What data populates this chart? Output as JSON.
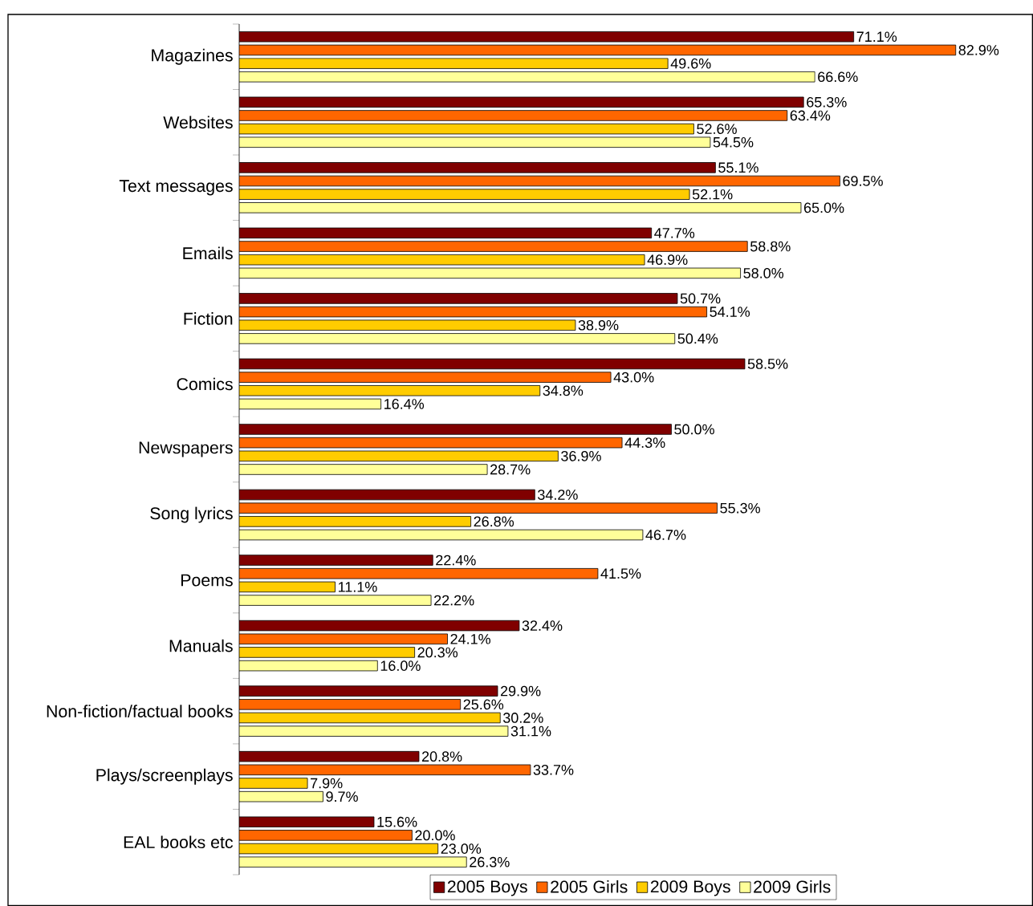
{
  "chart_data": {
    "type": "bar",
    "orientation": "horizontal",
    "legend": "bottom",
    "categories": [
      "Magazines",
      "Websites",
      "Text messages",
      "Emails",
      "Fiction",
      "Comics",
      "Newspapers",
      "Song lyrics",
      "Poems",
      "Manuals",
      "Non-fiction/factual books",
      "Plays/screenplays",
      "EAL books etc"
    ],
    "series": [
      {
        "name": "2005 Boys",
        "color": "#800000",
        "values": [
          71.1,
          65.3,
          55.1,
          47.7,
          50.7,
          58.5,
          50.0,
          34.2,
          22.4,
          32.4,
          29.9,
          20.8,
          15.6
        ],
        "value_labels": [
          "71.1%",
          "65.3%",
          "55.1%",
          "47.7%",
          "50.7%",
          "58.5%",
          "50.0%",
          "34.2%",
          "22.4%",
          "32.4%",
          "29.9%",
          "20.8%",
          "15.6%"
        ]
      },
      {
        "name": "2005 Girls",
        "color": "#ff6600",
        "values": [
          82.9,
          63.4,
          69.5,
          58.8,
          54.1,
          43.0,
          44.3,
          55.3,
          41.5,
          24.1,
          25.6,
          33.7,
          20.0
        ],
        "value_labels": [
          "82.9%",
          "63.4%",
          "69.5%",
          "58.8%",
          "54.1%",
          "43.0%",
          "44.3%",
          "55.3%",
          "41.5%",
          "24.1%",
          "25.6%",
          "33.7%",
          "20.0%"
        ]
      },
      {
        "name": "2009 Boys",
        "color": "#ffcc00",
        "values": [
          49.6,
          52.6,
          52.1,
          46.9,
          38.9,
          34.8,
          36.9,
          26.8,
          11.1,
          20.3,
          30.2,
          7.9,
          23.0
        ],
        "value_labels": [
          "49.6%",
          "52.6%",
          "52.1%",
          "46.9%",
          "38.9%",
          "34.8%",
          "36.9%",
          "26.8%",
          "11.1%",
          "20.3%",
          "30.2%",
          "7.9%",
          "23.0%"
        ]
      },
      {
        "name": "2009 Girls",
        "color": "#ffff99",
        "values": [
          66.6,
          54.5,
          65.0,
          58.0,
          50.4,
          16.4,
          28.7,
          46.7,
          22.2,
          16.0,
          31.1,
          9.7,
          26.3
        ],
        "value_labels": [
          "66.6%",
          "54.5%",
          "65.0%",
          "58.0%",
          "50.4%",
          "16.4%",
          "28.7%",
          "46.7%",
          "22.2%",
          "16.0%",
          "31.1%",
          "9.7%",
          "26.3%"
        ]
      }
    ]
  }
}
